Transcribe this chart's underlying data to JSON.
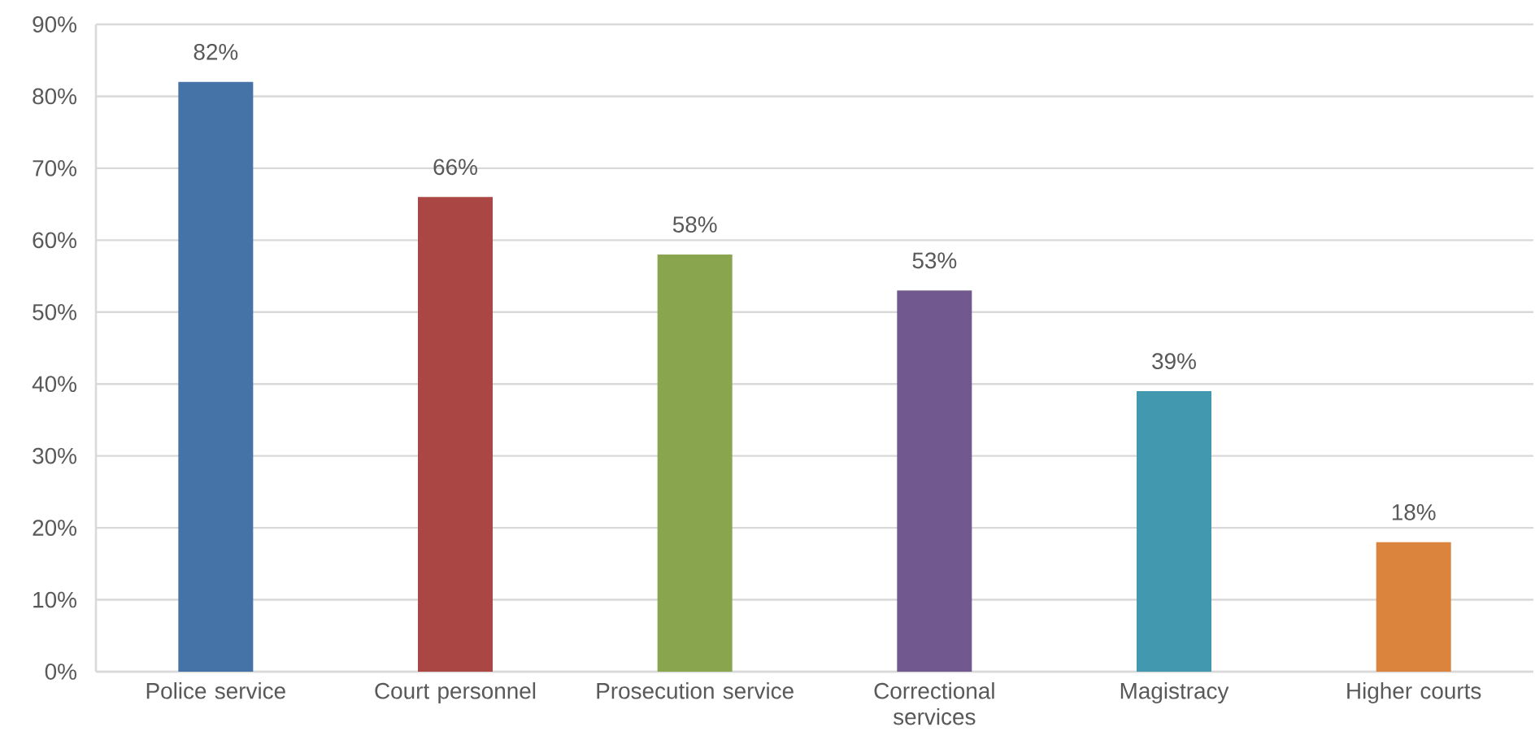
{
  "chart_data": {
    "type": "bar",
    "categories": [
      "Police service",
      "Court personnel",
      "Prosecution service",
      "Correctional services",
      "Magistracy",
      "Higher courts"
    ],
    "values": [
      82,
      66,
      58,
      53,
      39,
      18
    ],
    "colors": [
      "#4572a7",
      "#aa4643",
      "#89a54e",
      "#71588f",
      "#4198af",
      "#db843d"
    ],
    "value_labels": [
      "82%",
      "66%",
      "58%",
      "53%",
      "39%",
      "18%"
    ],
    "ylim": [
      0,
      90
    ],
    "yticks": [
      {
        "value": 0,
        "label": "0%"
      },
      {
        "value": 10,
        "label": "10%"
      },
      {
        "value": 20,
        "label": "20%"
      },
      {
        "value": 30,
        "label": "30%"
      },
      {
        "value": 40,
        "label": "40%"
      },
      {
        "value": 50,
        "label": "50%"
      },
      {
        "value": 60,
        "label": "60%"
      },
      {
        "value": 70,
        "label": "70%"
      },
      {
        "value": 80,
        "label": "80%"
      },
      {
        "value": 90,
        "label": "90%"
      }
    ],
    "grid": "y"
  }
}
